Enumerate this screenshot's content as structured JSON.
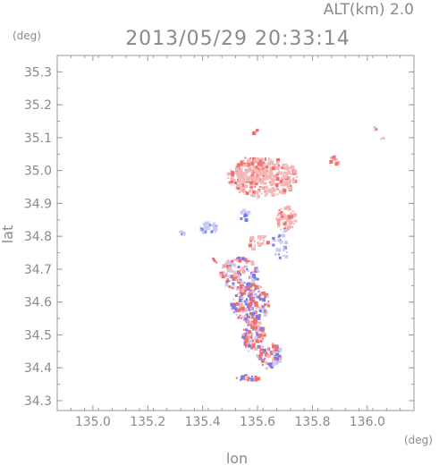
{
  "chart_data": {
    "type": "scatter",
    "header_label": "ALT(km)  2.0",
    "title": "2013/05/29 20:33:14",
    "xlabel": "lon",
    "ylabel": "lat",
    "x_unit": "(deg)",
    "y_unit": "(deg)",
    "xlim": [
      134.87,
      136.17
    ],
    "ylim": [
      34.27,
      35.35
    ],
    "xticks": [
      135.0,
      135.2,
      135.4,
      135.6,
      135.8,
      136.0
    ],
    "xtick_labels": [
      "135.0",
      "135.2",
      "135.4",
      "135.6",
      "135.8",
      "136.0"
    ],
    "yticks": [
      34.3,
      34.4,
      34.5,
      34.6,
      34.7,
      34.8,
      34.9,
      35.0,
      35.1,
      35.2,
      35.3
    ],
    "ytick_labels": [
      "34.3",
      "34.4",
      "34.5",
      "34.6",
      "34.7",
      "34.8",
      "34.9",
      "35.0",
      "35.1",
      "35.2",
      "35.3"
    ],
    "grid": false,
    "colors": {
      "positive_light": "#f4b8b8",
      "positive": "#f07070",
      "negative_light": "#c8ccf4",
      "negative": "#7a7af0",
      "axes": "#9a9a9a"
    },
    "clusters": [
      {
        "lon": 135.615,
        "lat": 34.985,
        "rlon": 0.13,
        "rlat": 0.06,
        "n": 300,
        "sign": "pos",
        "intensity": 0.25
      },
      {
        "lon": 135.575,
        "lat": 35.005,
        "rlon": 0.06,
        "rlat": 0.04,
        "n": 90,
        "sign": "pos",
        "intensity": 0.35
      },
      {
        "lon": 135.875,
        "lat": 35.035,
        "rlon": 0.015,
        "rlat": 0.012,
        "n": 10,
        "sign": "pos",
        "intensity": 0.5
      },
      {
        "lon": 135.587,
        "lat": 35.123,
        "rlon": 0.01,
        "rlat": 0.008,
        "n": 4,
        "sign": "pos",
        "intensity": 0.8
      },
      {
        "lon": 136.03,
        "lat": 35.13,
        "rlon": 0.01,
        "rlat": 0.01,
        "n": 3,
        "sign": "pos",
        "intensity": 0.5
      },
      {
        "lon": 136.055,
        "lat": 35.1,
        "rlon": 0.01,
        "rlat": 0.008,
        "n": 2,
        "sign": "pos",
        "intensity": 0.6
      },
      {
        "lon": 135.42,
        "lat": 34.83,
        "rlon": 0.035,
        "rlat": 0.02,
        "n": 40,
        "sign": "neg",
        "intensity": 0.2
      },
      {
        "lon": 135.32,
        "lat": 34.81,
        "rlon": 0.012,
        "rlat": 0.01,
        "n": 5,
        "sign": "neg",
        "intensity": 0.3
      },
      {
        "lon": 135.7,
        "lat": 34.855,
        "rlon": 0.035,
        "rlat": 0.04,
        "n": 70,
        "sign": "pos",
        "intensity": 0.3
      },
      {
        "lon": 135.6,
        "lat": 34.785,
        "rlon": 0.04,
        "rlat": 0.025,
        "n": 30,
        "sign": "pos",
        "intensity": 0.3
      },
      {
        "lon": 135.55,
        "lat": 34.87,
        "rlon": 0.02,
        "rlat": 0.02,
        "n": 10,
        "sign": "neg",
        "intensity": 0.5
      },
      {
        "lon": 135.53,
        "lat": 34.69,
        "rlon": 0.07,
        "rlat": 0.05,
        "n": 130,
        "sign": "mix",
        "intensity": 0.6
      },
      {
        "lon": 135.57,
        "lat": 34.6,
        "rlon": 0.07,
        "rlat": 0.06,
        "n": 170,
        "sign": "mix",
        "intensity": 0.7
      },
      {
        "lon": 135.58,
        "lat": 34.5,
        "rlon": 0.04,
        "rlat": 0.05,
        "n": 90,
        "sign": "mix",
        "intensity": 0.7
      },
      {
        "lon": 135.64,
        "lat": 34.44,
        "rlon": 0.045,
        "rlat": 0.04,
        "n": 70,
        "sign": "mix",
        "intensity": 0.7
      },
      {
        "lon": 135.56,
        "lat": 34.37,
        "rlon": 0.04,
        "rlat": 0.012,
        "n": 20,
        "sign": "mix",
        "intensity": 0.8
      },
      {
        "lon": 135.68,
        "lat": 34.78,
        "rlon": 0.03,
        "rlat": 0.05,
        "n": 25,
        "sign": "neg",
        "intensity": 0.4
      },
      {
        "lon": 135.44,
        "lat": 34.73,
        "rlon": 0.01,
        "rlat": 0.01,
        "n": 3,
        "sign": "pos",
        "intensity": 0.9
      }
    ]
  }
}
